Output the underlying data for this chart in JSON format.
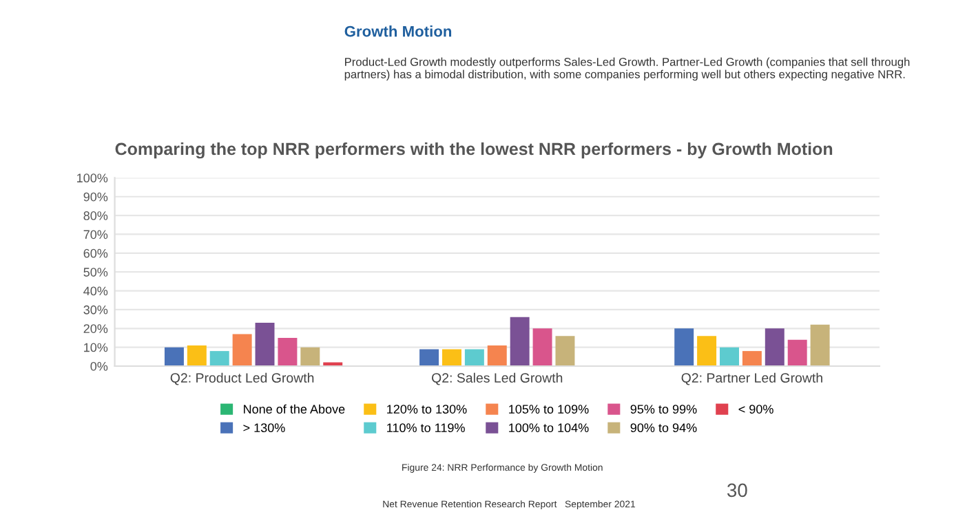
{
  "chart_data": {
    "type": "bar",
    "title": "Comparing the top NRR performers with the lowest NRR performers - by Growth Motion",
    "annotations": [
      "Growth Motion",
      "Product-Led Growth modestly outperforms Sales-Led Growth. Partner-Led Growth (companies that sell through partners) has a bimodal distribution, with some companies performing well but others expecting negative NRR.",
      "Figure 24: NRR Performance by Growth Motion",
      "Net Revenue Retention Research Report   September 2021",
      "30"
    ],
    "categories": [
      "Q2: Product Led Growth",
      "Q2: Sales Led Growth",
      "Q2: Partner Led Growth"
    ],
    "series": [
      {
        "name": "None of the Above",
        "color": "#2bb673",
        "values": [
          0,
          0,
          0
        ]
      },
      {
        "name": "> 130%",
        "color": "#4a72b8",
        "values": [
          10,
          9,
          20
        ]
      },
      {
        "name": "120% to 130%",
        "color": "#fbbf16",
        "values": [
          11,
          9,
          16
        ]
      },
      {
        "name": "110% to 119%",
        "color": "#5dcbcf",
        "values": [
          8,
          9,
          10
        ]
      },
      {
        "name": "105% to 109%",
        "color": "#f5844f",
        "values": [
          17,
          11,
          8
        ]
      },
      {
        "name": "100% to 104%",
        "color": "#7a5195",
        "values": [
          23,
          26,
          20
        ]
      },
      {
        "name": "95% to 99%",
        "color": "#d9558c",
        "values": [
          15,
          20,
          14
        ]
      },
      {
        "name": "90% to 94%",
        "color": "#c7b37a",
        "values": [
          10,
          16,
          22
        ]
      },
      {
        "name": "< 90%",
        "color": "#e0414f",
        "values": [
          2,
          0,
          0
        ]
      }
    ],
    "ylim": [
      0,
      100
    ],
    "yticks": [
      {
        "value": 0,
        "label": "0%"
      },
      {
        "value": 10,
        "label": "10%"
      },
      {
        "value": 20,
        "label": "20%"
      },
      {
        "value": 30,
        "label": "30%"
      },
      {
        "value": 40,
        "label": "40%"
      },
      {
        "value": 50,
        "label": "50%"
      },
      {
        "value": 60,
        "label": "60%"
      },
      {
        "value": 70,
        "label": "70%"
      },
      {
        "value": 80,
        "label": "80%"
      },
      {
        "value": 90,
        "label": "90%"
      },
      {
        "value": 100,
        "label": "100%"
      }
    ],
    "grid": "y",
    "legend": "bottom"
  }
}
